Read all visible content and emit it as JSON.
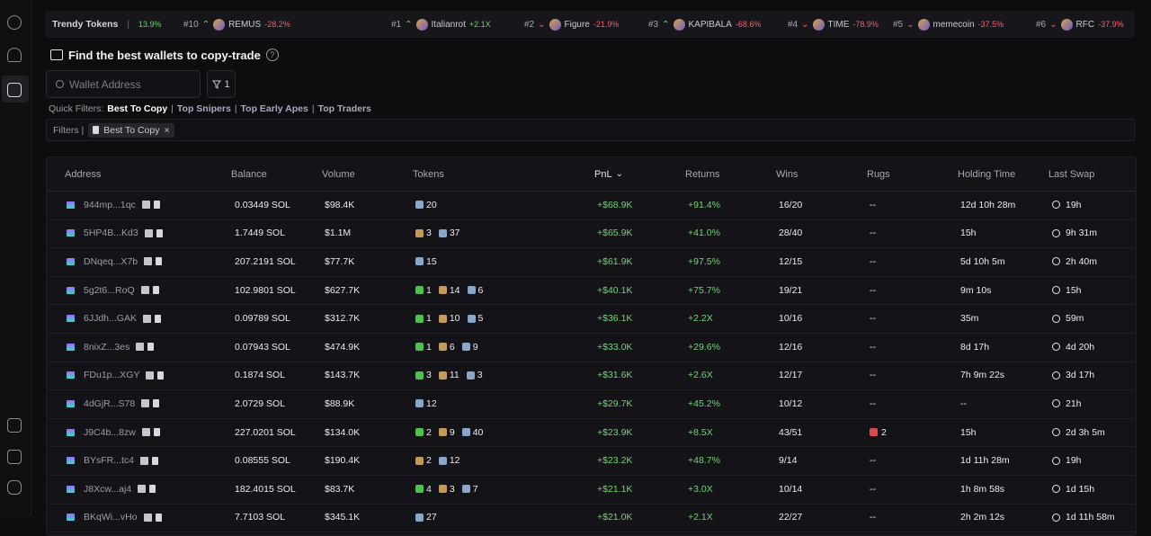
{
  "ticker": {
    "label": "Trendy Tokens",
    "change": "13.9%",
    "items": [
      {
        "rank": "#10",
        "trend": "up",
        "name": "REMUS",
        "change": "-28.2%"
      },
      {
        "rank": "#1",
        "trend": "up",
        "name": "Italianrot",
        "change": "+2.1X"
      },
      {
        "rank": "#2",
        "trend": "down",
        "name": "Figure",
        "change": "-21.9%"
      },
      {
        "rank": "#3",
        "trend": "up",
        "name": "KAPIBALA",
        "change": "-68.6%"
      },
      {
        "rank": "#4",
        "trend": "down",
        "name": "TIME",
        "change": "-78.9%"
      },
      {
        "rank": "#5",
        "trend": "down",
        "name": "memecoin",
        "change": "-37.5%"
      },
      {
        "rank": "#6",
        "trend": "down",
        "name": "RFC",
        "change": "-37.9%"
      }
    ]
  },
  "header": {
    "title": "Find the best wallets to copy-trade",
    "help": "?"
  },
  "search": {
    "placeholder": "Wallet Address",
    "filter_count": "1"
  },
  "quick_filters": {
    "label": "Quick Filters:",
    "separator": "|",
    "items": [
      "Best To Copy",
      "Top Snipers",
      "Top Early Apes",
      "Top Traders"
    ],
    "active": 0
  },
  "filters": {
    "label": "Filters |",
    "chips": [
      {
        "text": "Best To Copy",
        "close": "×"
      }
    ]
  },
  "table": {
    "columns": [
      "Address",
      "Balance",
      "Volume",
      "Tokens",
      "PnL",
      "Returns",
      "Wins",
      "Rugs",
      "Holding Time",
      "Last Swap"
    ],
    "sorted_by": 4,
    "rows": [
      {
        "address": "944mp...1qc",
        "balance": "0.03449 SOL",
        "volume": "$98.4K",
        "tokens": [
          {
            "kind": "shield",
            "count": 20
          }
        ],
        "pnl": "+$68.9K",
        "returns": "+91.4%",
        "wins": "16/20",
        "rugs": "--",
        "holding": "12d 10h 28m",
        "last_swap": "19h"
      },
      {
        "address": "5HP4B...Kd3",
        "balance": "1.7449 SOL",
        "volume": "$1.1M",
        "tokens": [
          {
            "kind": "bag",
            "count": 3
          },
          {
            "kind": "shield",
            "count": 37
          }
        ],
        "pnl": "+$65.9K",
        "returns": "+41.0%",
        "wins": "28/40",
        "rugs": "--",
        "holding": "15h",
        "last_swap": "9h 31m"
      },
      {
        "address": "DNqeq...X7b",
        "balance": "207.2191 SOL",
        "volume": "$77.7K",
        "tokens": [
          {
            "kind": "shield",
            "count": 15
          }
        ],
        "pnl": "+$61.9K",
        "returns": "+97.5%",
        "wins": "12/15",
        "rugs": "--",
        "holding": "5d 10h 5m",
        "last_swap": "2h 40m"
      },
      {
        "address": "5g2t6...RoQ",
        "balance": "102.9801 SOL",
        "volume": "$627.7K",
        "tokens": [
          {
            "kind": "green",
            "count": 1
          },
          {
            "kind": "bag",
            "count": 14
          },
          {
            "kind": "shield",
            "count": 6
          }
        ],
        "pnl": "+$40.1K",
        "returns": "+75.7%",
        "wins": "19/21",
        "rugs": "--",
        "holding": "9m 10s",
        "last_swap": "15h"
      },
      {
        "address": "6JJdh...GAK",
        "balance": "0.09789 SOL",
        "volume": "$312.7K",
        "tokens": [
          {
            "kind": "green",
            "count": 1
          },
          {
            "kind": "bag",
            "count": 10
          },
          {
            "kind": "shield",
            "count": 5
          }
        ],
        "pnl": "+$36.1K",
        "returns": "+2.2X",
        "wins": "10/16",
        "rugs": "--",
        "holding": "35m",
        "last_swap": "59m"
      },
      {
        "address": "8nixZ...3es",
        "balance": "0.07943 SOL",
        "volume": "$474.9K",
        "tokens": [
          {
            "kind": "green",
            "count": 1
          },
          {
            "kind": "bag",
            "count": 6
          },
          {
            "kind": "shield",
            "count": 9
          }
        ],
        "pnl": "+$33.0K",
        "returns": "+29.6%",
        "wins": "12/16",
        "rugs": "--",
        "holding": "8d 17h",
        "last_swap": "4d 20h"
      },
      {
        "address": "FDu1p...XGY",
        "balance": "0.1874 SOL",
        "volume": "$143.7K",
        "tokens": [
          {
            "kind": "green",
            "count": 3
          },
          {
            "kind": "bag",
            "count": 11
          },
          {
            "kind": "shield",
            "count": 3
          }
        ],
        "pnl": "+$31.6K",
        "returns": "+2.6X",
        "wins": "12/17",
        "rugs": "--",
        "holding": "7h 9m 22s",
        "last_swap": "3d 17h"
      },
      {
        "address": "4dGjR...S78",
        "balance": "2.0729 SOL",
        "volume": "$88.9K",
        "tokens": [
          {
            "kind": "shield",
            "count": 12
          }
        ],
        "pnl": "+$29.7K",
        "returns": "+45.2%",
        "wins": "10/12",
        "rugs": "--",
        "holding": "--",
        "last_swap": "21h"
      },
      {
        "address": "J9C4b...8zw",
        "balance": "227.0201 SOL",
        "volume": "$134.0K",
        "tokens": [
          {
            "kind": "green",
            "count": 2
          },
          {
            "kind": "bag",
            "count": 9
          },
          {
            "kind": "shield",
            "count": 40
          }
        ],
        "pnl": "+$23.9K",
        "returns": "+8.5X",
        "wins": "43/51",
        "rugs": 2,
        "holding": "15h",
        "last_swap": "2d 3h 5m"
      },
      {
        "address": "BYsFR...tc4",
        "balance": "0.08555 SOL",
        "volume": "$190.4K",
        "tokens": [
          {
            "kind": "bag",
            "count": 2
          },
          {
            "kind": "shield",
            "count": 12
          }
        ],
        "pnl": "+$23.2K",
        "returns": "+48.7%",
        "wins": "9/14",
        "rugs": "--",
        "holding": "1d 11h 28m",
        "last_swap": "19h"
      },
      {
        "address": "J8Xcw...aj4",
        "balance": "182.4015 SOL",
        "volume": "$83.7K",
        "tokens": [
          {
            "kind": "green",
            "count": 4
          },
          {
            "kind": "bag",
            "count": 3
          },
          {
            "kind": "shield",
            "count": 7
          }
        ],
        "pnl": "+$21.1K",
        "returns": "+3.0X",
        "wins": "10/14",
        "rugs": "--",
        "holding": "1h 8m 58s",
        "last_swap": "1d 15h"
      },
      {
        "address": "BKqWi...vHo",
        "balance": "7.7103 SOL",
        "volume": "$345.1K",
        "tokens": [
          {
            "kind": "shield",
            "count": 27
          }
        ],
        "pnl": "+$21.0K",
        "returns": "+2.1X",
        "wins": "22/27",
        "rugs": "--",
        "holding": "2h 2m 12s",
        "last_swap": "1d 11h 58m"
      }
    ]
  }
}
